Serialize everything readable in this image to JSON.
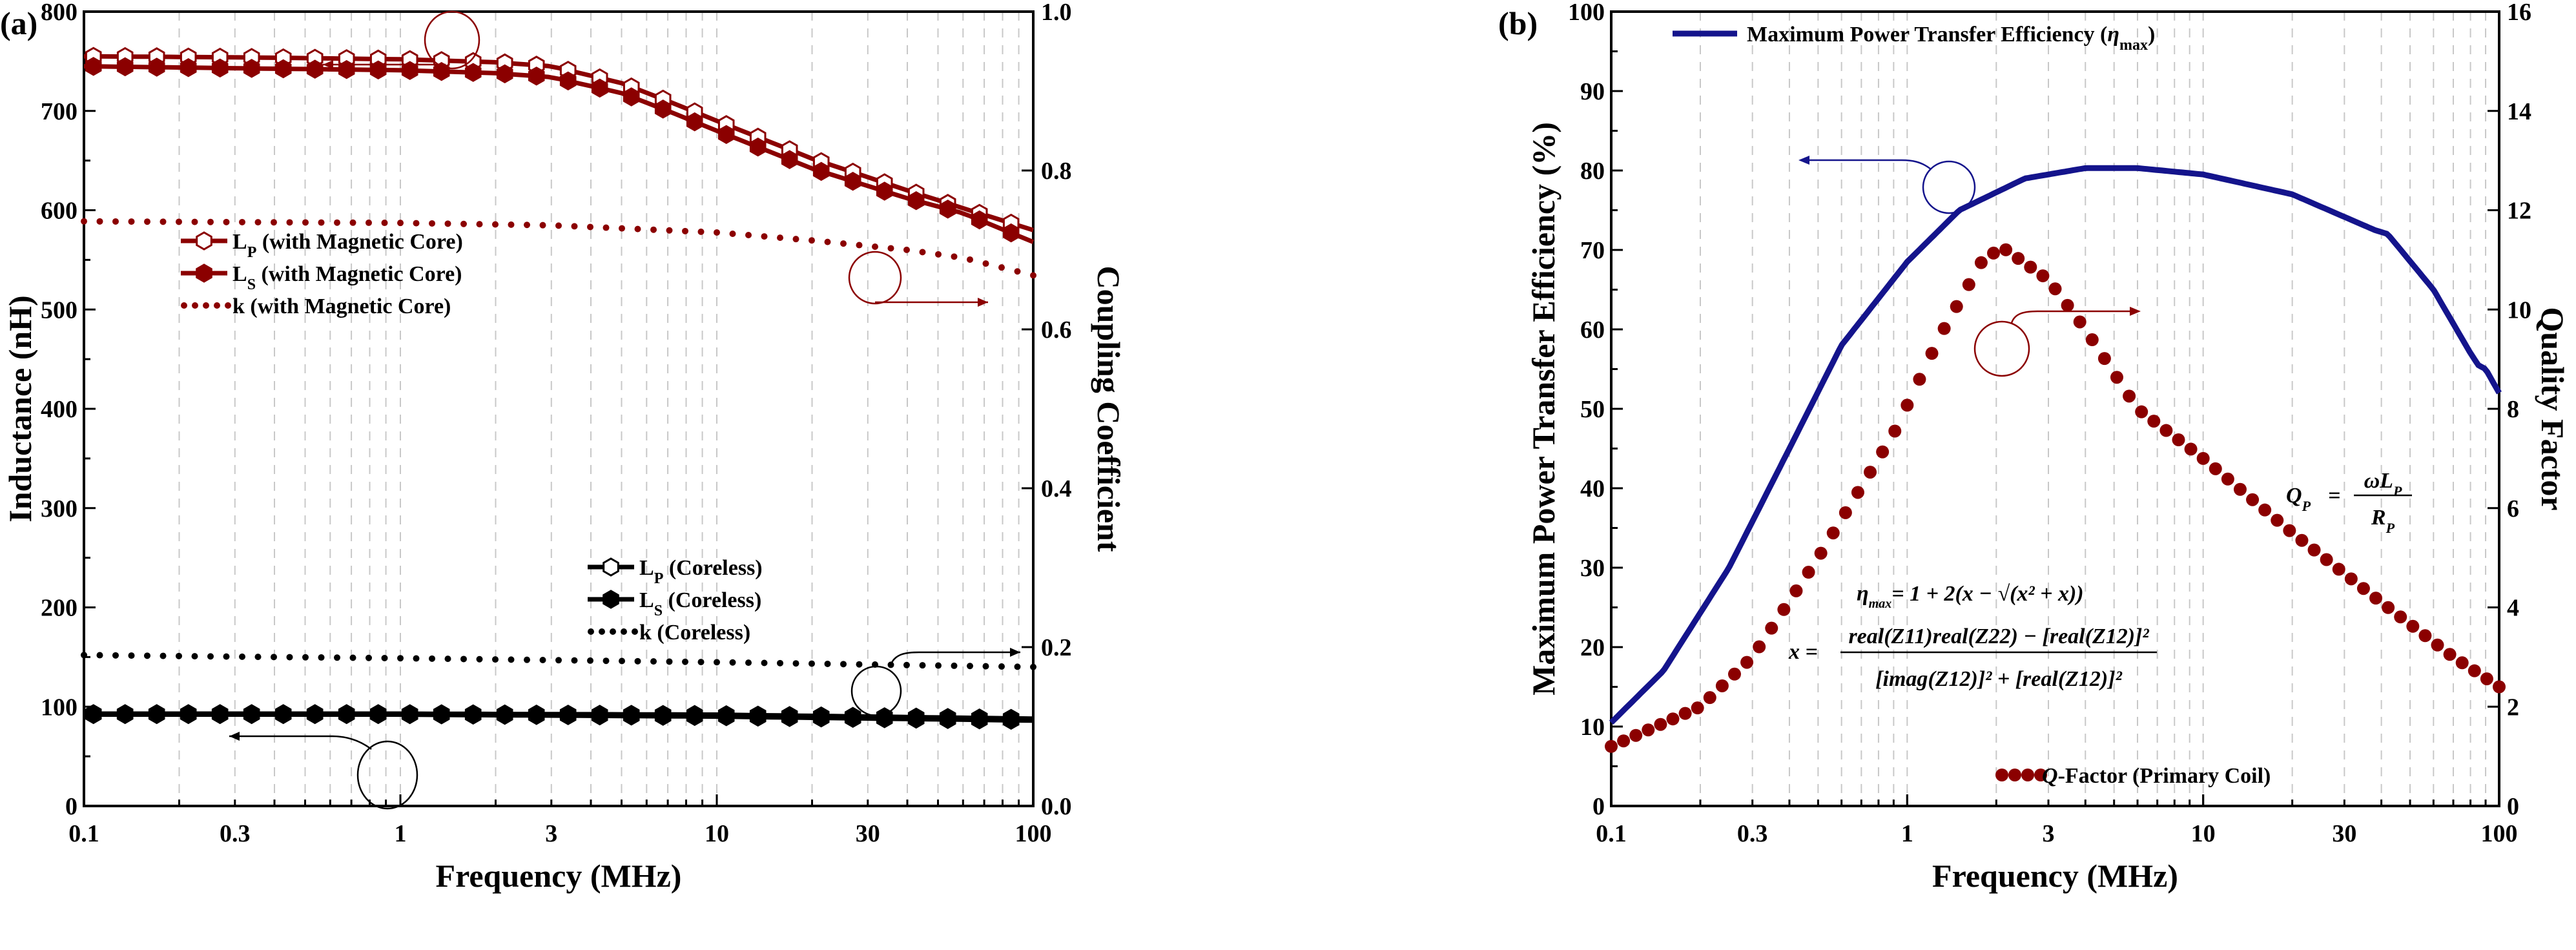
{
  "chart_data": [
    {
      "type": "line",
      "panel_label": "(a)",
      "xlabel": "Frequency (MHz)",
      "ylabel": "Inductance (nH)",
      "y2label": "Coupling Coefficient",
      "xscale": "log",
      "xlim": [
        0.1,
        100
      ],
      "ylim": [
        0,
        800
      ],
      "y2lim": [
        0,
        1.0
      ],
      "xticks": [
        "0.1",
        "0.3",
        "1",
        "3",
        "10",
        "30",
        "100"
      ],
      "xtick_values": [
        0.1,
        0.3,
        1,
        3,
        10,
        30,
        100
      ],
      "yticks": [
        "0",
        "100",
        "200",
        "300",
        "400",
        "500",
        "600",
        "700",
        "800"
      ],
      "y2ticks": [
        "0.0",
        "0.2",
        "0.4",
        "0.6",
        "0.8",
        "1.0"
      ],
      "grid": "vertical dashed",
      "series": [
        {
          "name": "LP (with Magnetic Core)",
          "label_main": "L",
          "label_sub": "P",
          "label_rest": " (with Magnetic Core)",
          "axis": "left",
          "marker": "open-hexagon",
          "color": "#8b0000",
          "x": [
            0.1,
            0.3,
            1,
            2,
            3,
            5,
            7,
            10,
            20,
            40,
            60,
            100
          ],
          "y": [
            755,
            754,
            752,
            749,
            745,
            728,
            710,
            690,
            652,
            620,
            602,
            580
          ]
        },
        {
          "name": "LS (with Magnetic Core)",
          "label_main": "L",
          "label_sub": "S",
          "label_rest": " (with Magnetic Core)",
          "axis": "left",
          "marker": "filled-hexagon",
          "color": "#8b0000",
          "x": [
            0.1,
            0.3,
            1,
            2,
            3,
            5,
            7,
            10,
            20,
            40,
            60,
            100
          ],
          "y": [
            745,
            743,
            741,
            738,
            734,
            718,
            700,
            680,
            642,
            612,
            597,
            568
          ]
        },
        {
          "name": "k (with Magnetic Core)",
          "label_main": "k",
          "label_sub": "",
          "label_rest": "   (with Magnetic Core)",
          "axis": "right",
          "marker": "dot",
          "color": "#8b0000",
          "x": [
            0.1,
            1,
            3,
            10,
            20,
            40,
            60,
            100
          ],
          "y": [
            0.736,
            0.734,
            0.731,
            0.722,
            0.712,
            0.7,
            0.69,
            0.668
          ]
        },
        {
          "name": "LP (Coreless)",
          "label_main": "L",
          "label_sub": "P",
          "label_rest": " (Coreless)",
          "axis": "left",
          "marker": "open-hexagon",
          "color": "#000000",
          "x": [
            0.1,
            1,
            10,
            100
          ],
          "y": [
            93,
            93,
            92,
            88
          ]
        },
        {
          "name": "LS (Coreless)",
          "label_main": "L",
          "label_sub": "S",
          "label_rest": " (Coreless)",
          "axis": "left",
          "marker": "filled-hexagon",
          "color": "#000000",
          "x": [
            0.1,
            1,
            10,
            100
          ],
          "y": [
            92,
            92,
            90,
            86
          ]
        },
        {
          "name": "k (Coreless)",
          "label_main": "k",
          "label_sub": "",
          "label_rest": "   (Coreless)",
          "axis": "right",
          "marker": "dot",
          "color": "#000000",
          "x": [
            0.1,
            0.3,
            1,
            10,
            100
          ],
          "y": [
            0.19,
            0.188,
            0.186,
            0.181,
            0.175
          ]
        }
      ]
    },
    {
      "type": "line",
      "panel_label": "(b)",
      "xlabel": "Frequency (MHz)",
      "ylabel": "Maximum Power Transfer Efficiency (%)",
      "y2label": "Quality Factor",
      "xscale": "log",
      "xlim": [
        0.1,
        100
      ],
      "ylim": [
        0,
        100
      ],
      "y2lim": [
        0,
        16
      ],
      "xticks": [
        "0.1",
        "0.3",
        "1",
        "3",
        "10",
        "30",
        "100"
      ],
      "xtick_values": [
        0.1,
        0.3,
        1,
        3,
        10,
        30,
        100
      ],
      "yticks": [
        "0",
        "10",
        "20",
        "30",
        "40",
        "50",
        "60",
        "70",
        "80",
        "90",
        "100"
      ],
      "y2ticks": [
        "0",
        "2",
        "4",
        "6",
        "8",
        "10",
        "12",
        "14",
        "16"
      ],
      "grid": "vertical dashed",
      "series": [
        {
          "name": "Maximum Power Transfer Efficiency (ηmax)",
          "label_main": "Maximum Power Transfer Efficiency (",
          "label_eta": "η",
          "label_sub": "max",
          "label_rest": ")",
          "axis": "left",
          "marker": "line",
          "color": "#14148c",
          "x": [
            0.1,
            0.15,
            0.25,
            0.4,
            0.6,
            1,
            1.5,
            2.5,
            4,
            6,
            10,
            20,
            38,
            42,
            60,
            80,
            85,
            90,
            100
          ],
          "y": [
            10.5,
            17,
            30,
            45,
            58,
            68.5,
            75,
            79,
            80.3,
            80.3,
            79.5,
            77,
            72.5,
            72,
            65,
            57,
            55.5,
            55,
            52
          ]
        },
        {
          "name": "Q-Factor (Primary Coil)",
          "label_main": "Q",
          "label_rest": "-Factor (Primary Coil)",
          "axis": "right",
          "marker": "dot",
          "color": "#8b0000",
          "x": [
            0.1,
            0.2,
            0.3,
            0.5,
            0.9,
            1.3,
            1.8,
            2.1,
            3,
            4,
            6,
            10,
            20,
            40,
            70,
            100
          ],
          "y": [
            1.2,
            2.0,
            3.0,
            5.0,
            7.5,
            9.5,
            11.0,
            11.25,
            10.6,
            9.6,
            8.0,
            7.0,
            5.5,
            4.1,
            3.0,
            2.4
          ]
        }
      ],
      "annotations": {
        "q_formula_lhs": "Q",
        "q_formula_lhs_sub": "P",
        "q_formula_num": "ωL",
        "q_formula_num_sub": "P",
        "q_formula_den": "R",
        "q_formula_den_sub": "P",
        "eta_formula": "= 1 + 2(x − √(x² + x))",
        "x_formula_num": "real(Z11)real(Z22) − [real(Z12)]²",
        "x_formula_den": "[imag(Z12)]² + [real(Z12)]²"
      }
    }
  ]
}
